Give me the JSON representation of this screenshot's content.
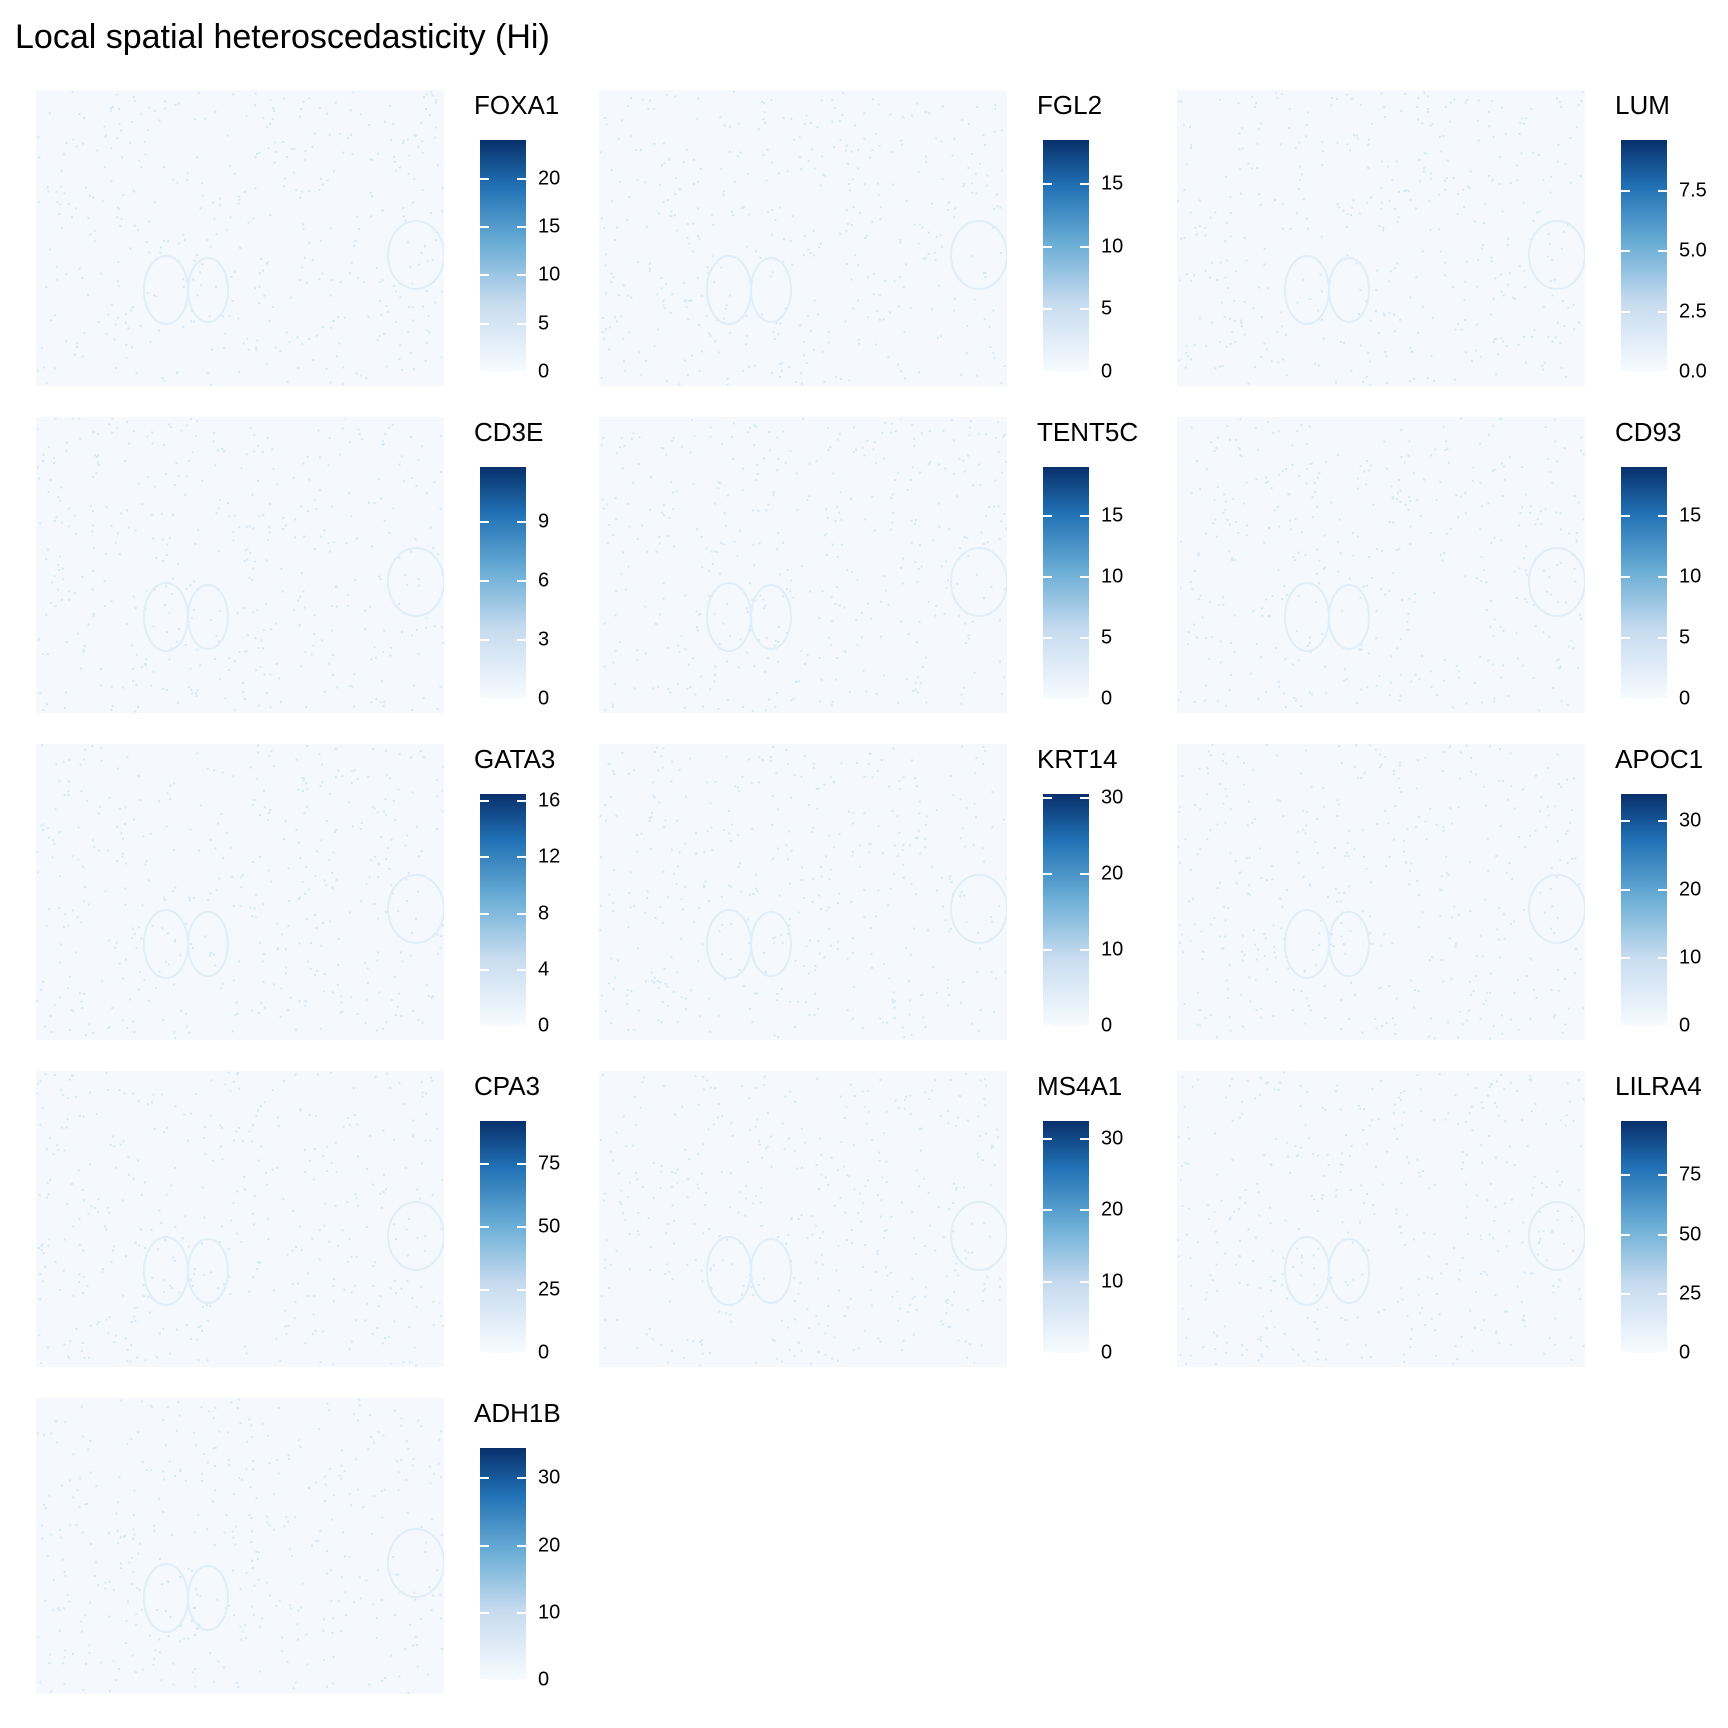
{
  "title": "Local spatial heteroscedasticity (Hi)",
  "chart_data": [
    {
      "type": "heatmap",
      "gene": "FOXA1",
      "legend": {
        "title": "FOXA1",
        "limits": [
          0,
          24
        ],
        "breaks": [
          0,
          5,
          10,
          15,
          20
        ],
        "tick_labels": [
          "0",
          "5",
          "10",
          "15",
          "20"
        ]
      }
    },
    {
      "type": "heatmap",
      "gene": "FGL2",
      "legend": {
        "title": "FGL2",
        "limits": [
          0,
          18.5
        ],
        "breaks": [
          0,
          5,
          10,
          15
        ],
        "tick_labels": [
          "0",
          "5",
          "10",
          "15"
        ]
      }
    },
    {
      "type": "heatmap",
      "gene": "LUM",
      "legend": {
        "title": "LUM",
        "limits": [
          0,
          9.6
        ],
        "breaks": [
          0,
          2.5,
          5,
          7.5
        ],
        "tick_labels": [
          "0.0",
          "2.5",
          "5.0",
          "7.5"
        ]
      }
    },
    {
      "type": "heatmap",
      "gene": "CD3E",
      "legend": {
        "title": "CD3E",
        "limits": [
          0,
          11.8
        ],
        "breaks": [
          0,
          3,
          6,
          9
        ],
        "tick_labels": [
          "0",
          "3",
          "6",
          "9"
        ]
      }
    },
    {
      "type": "heatmap",
      "gene": "TENT5C",
      "legend": {
        "title": "TENT5C",
        "limits": [
          0,
          19
        ],
        "breaks": [
          0,
          5,
          10,
          15
        ],
        "tick_labels": [
          "0",
          "5",
          "10",
          "15"
        ]
      }
    },
    {
      "type": "heatmap",
      "gene": "CD93",
      "legend": {
        "title": "CD93",
        "limits": [
          0,
          19
        ],
        "breaks": [
          0,
          5,
          10,
          15
        ],
        "tick_labels": [
          "0",
          "5",
          "10",
          "15"
        ]
      }
    },
    {
      "type": "heatmap",
      "gene": "GATA3",
      "legend": {
        "title": "GATA3",
        "limits": [
          0,
          16.5
        ],
        "breaks": [
          0,
          4,
          8,
          12,
          16
        ],
        "tick_labels": [
          "0",
          "4",
          "8",
          "12",
          "16"
        ]
      }
    },
    {
      "type": "heatmap",
      "gene": "KRT14",
      "legend": {
        "title": "KRT14",
        "limits": [
          0,
          30.5
        ],
        "breaks": [
          0,
          10,
          20,
          30
        ],
        "tick_labels": [
          "0",
          "10",
          "20",
          "30"
        ]
      }
    },
    {
      "type": "heatmap",
      "gene": "APOC1",
      "legend": {
        "title": "APOC1",
        "limits": [
          0,
          34
        ],
        "breaks": [
          0,
          10,
          20,
          30
        ],
        "tick_labels": [
          "0",
          "10",
          "20",
          "30"
        ]
      }
    },
    {
      "type": "heatmap",
      "gene": "CPA3",
      "legend": {
        "title": "CPA3",
        "limits": [
          0,
          92
        ],
        "breaks": [
          0,
          25,
          50,
          75
        ],
        "tick_labels": [
          "0",
          "25",
          "50",
          "75"
        ]
      }
    },
    {
      "type": "heatmap",
      "gene": "MS4A1",
      "legend": {
        "title": "MS4A1",
        "limits": [
          0,
          32.5
        ],
        "breaks": [
          0,
          10,
          20,
          30
        ],
        "tick_labels": [
          "0",
          "10",
          "20",
          "30"
        ]
      }
    },
    {
      "type": "heatmap",
      "gene": "LILRA4",
      "legend": {
        "title": "LILRA4",
        "limits": [
          0,
          98
        ],
        "breaks": [
          0,
          25,
          50,
          75
        ],
        "tick_labels": [
          "0",
          "25",
          "50",
          "75"
        ]
      }
    },
    {
      "type": "heatmap",
      "gene": "ADH1B",
      "legend": {
        "title": "ADH1B",
        "limits": [
          0,
          34.5
        ],
        "breaks": [
          0,
          10,
          20,
          30
        ],
        "tick_labels": [
          "0",
          "10",
          "20",
          "30"
        ]
      }
    }
  ],
  "colors": {
    "low": "#f7fbff",
    "mid": "#6baed6",
    "high": "#08306b",
    "map_background": "#f5f9fd",
    "speckle": "#d5e6f5"
  }
}
